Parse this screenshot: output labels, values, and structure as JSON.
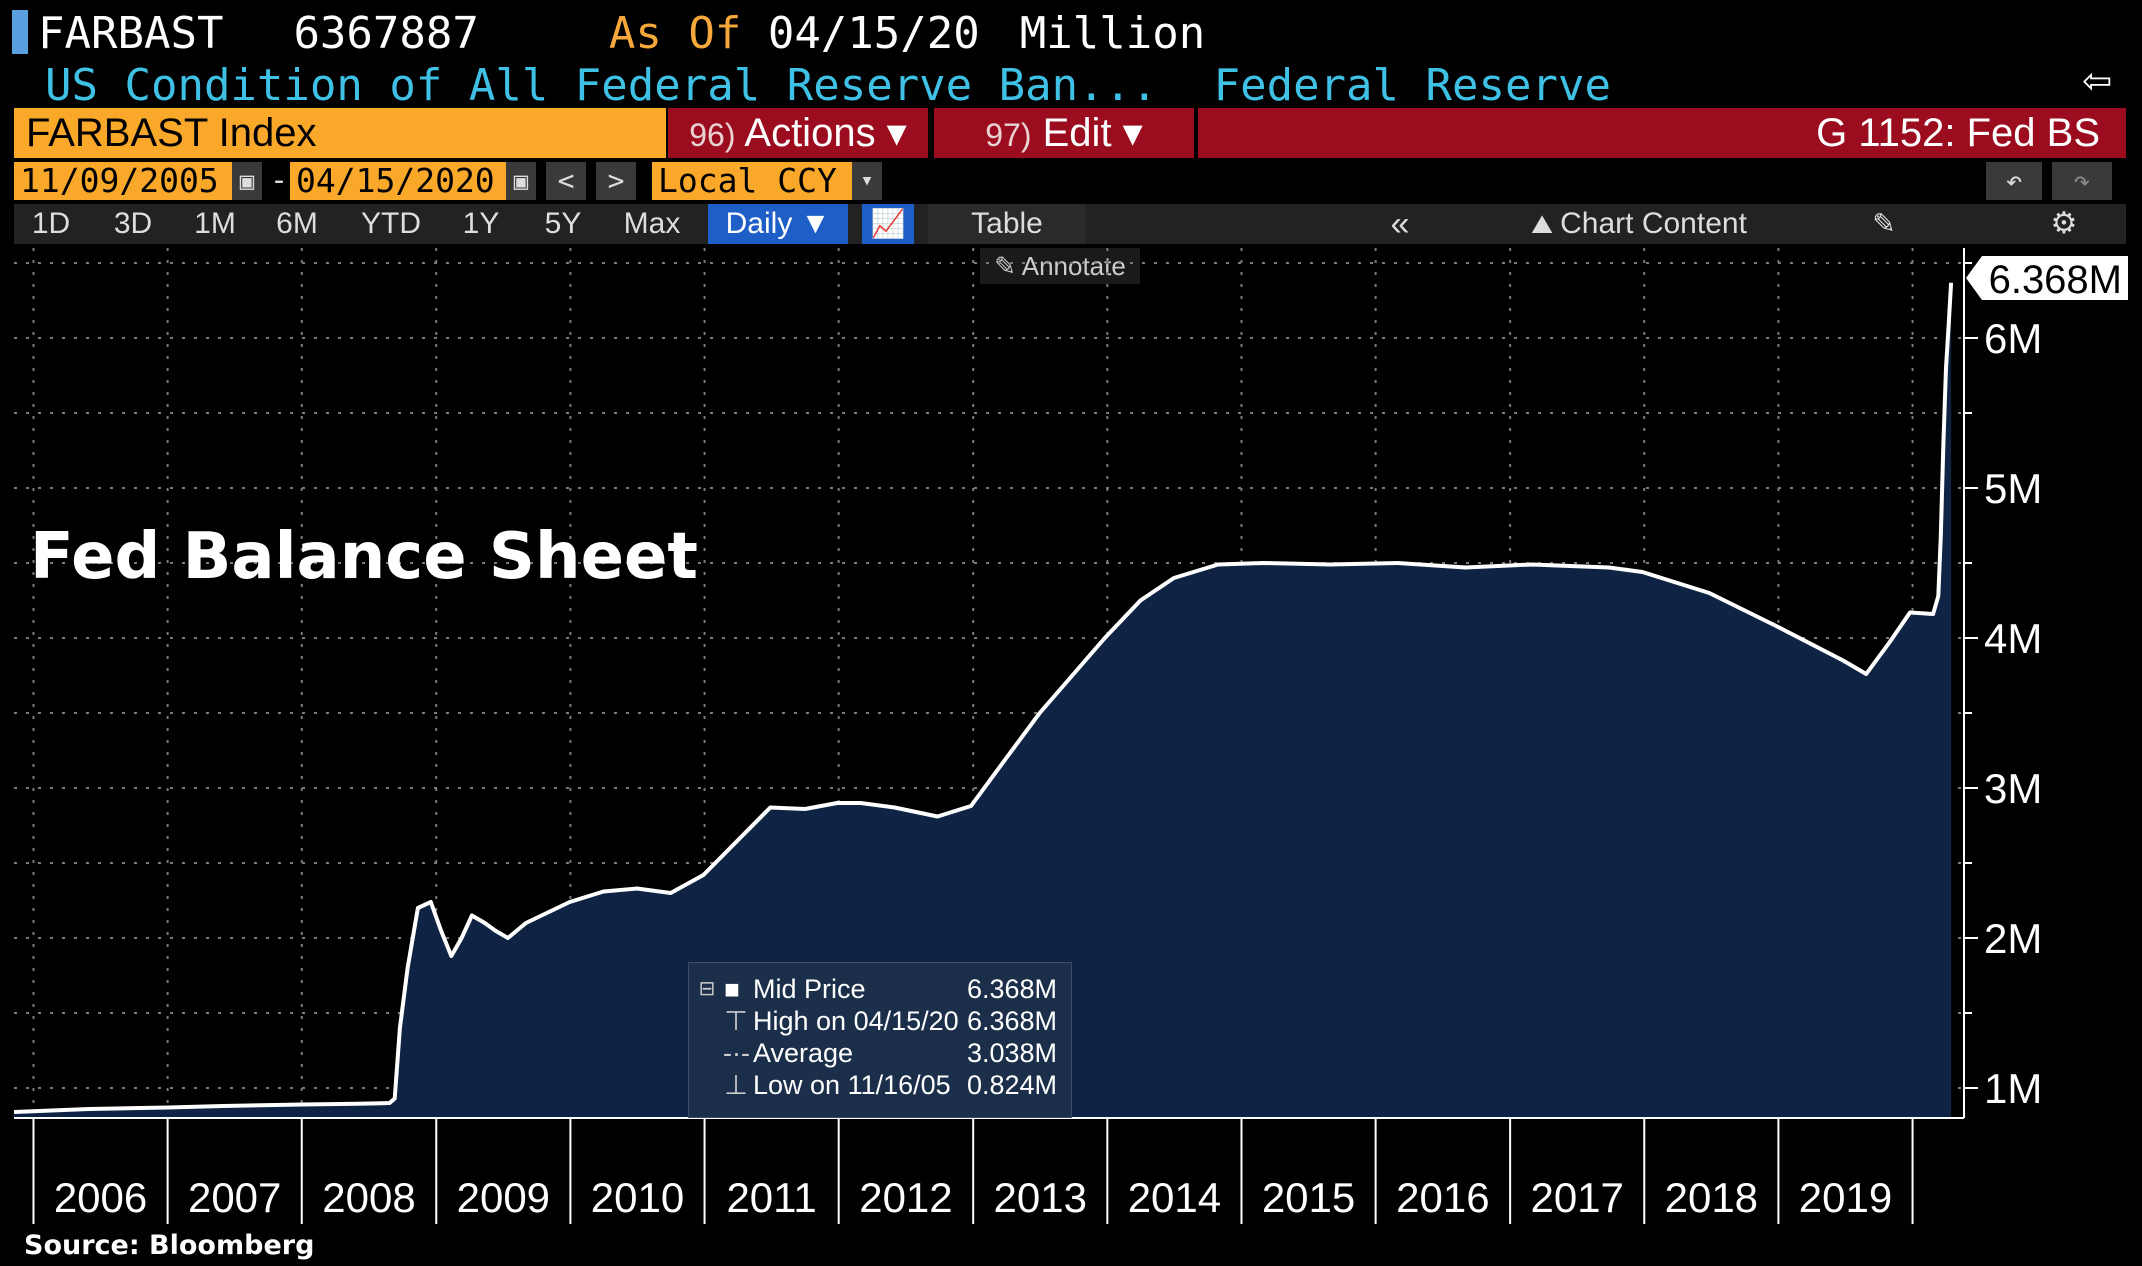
{
  "header": {
    "ticker": "FARBAST",
    "value": "6367887",
    "as_of_label": "As Of",
    "as_of_date": "04/15/20",
    "unit": "Million",
    "description": "US Condition of All Federal Reserve Ban...",
    "source_name": "Federal Reserve"
  },
  "toolbar": {
    "security": "FARBAST Index",
    "actions_num": "96)",
    "actions_label": "Actions ▾",
    "edit_num": "97)",
    "edit_label": "Edit ▾",
    "page_title": "G 1152: Fed BS"
  },
  "dates": {
    "start": "11/09/2005",
    "separator": "-",
    "end": "04/15/2020",
    "currency": "Local CCY"
  },
  "tabs": [
    {
      "label": "1D"
    },
    {
      "label": "3D"
    },
    {
      "label": "1M"
    },
    {
      "label": "6M"
    },
    {
      "label": "YTD"
    },
    {
      "label": "1Y"
    },
    {
      "label": "5Y"
    },
    {
      "label": "Max"
    },
    {
      "label": "Daily ▼"
    },
    {
      "label": "Table"
    },
    {
      "label": "Chart Content"
    }
  ],
  "annotate_label": "Annotate",
  "title_overlay": "Fed Balance Sheet",
  "source": "Source: Bloomberg",
  "legend": [
    {
      "label": "Mid Price",
      "value": "6.368M"
    },
    {
      "label": "High on 04/15/20",
      "value": "6.368M"
    },
    {
      "label": "Average",
      "value": "3.038M"
    },
    {
      "label": "Low on 11/16/05",
      "value": "0.824M"
    }
  ],
  "colors": {
    "fill": "#0f2444",
    "line": "#ffffff",
    "accent_orange": "#f9a82a",
    "accent_red": "#9b0c1e",
    "grid": "#7a7a7a"
  },
  "chart_data": {
    "type": "area",
    "title": "Fed Balance Sheet",
    "unit": "Million",
    "last_value_label": "6.368M",
    "x_ticks": [
      "2006",
      "2007",
      "2008",
      "2009",
      "2010",
      "2011",
      "2012",
      "2013",
      "2014",
      "2015",
      "2016",
      "2017",
      "2018",
      "2019"
    ],
    "y_ticks": [
      1000000,
      2000000,
      3000000,
      4000000,
      5000000,
      6000000
    ],
    "y_tick_labels": [
      "1M",
      "2M",
      "3M",
      "4M",
      "5M",
      "6M"
    ],
    "ylim": [
      800000,
      6600000
    ],
    "xlim": [
      "2005-11-09",
      "2020-05-20"
    ],
    "grid": true,
    "series": [
      {
        "values": [
          [
            "2005-11-09",
            840000
          ],
          [
            "2006-06-01",
            860000
          ],
          [
            "2007-01-01",
            870000
          ],
          [
            "2007-06-01",
            880000
          ],
          [
            "2008-01-01",
            890000
          ],
          [
            "2008-06-01",
            895000
          ],
          [
            "2008-08-27",
            900000
          ],
          [
            "2008-09-10",
            930000
          ],
          [
            "2008-09-24",
            1400000
          ],
          [
            "2008-10-15",
            1800000
          ],
          [
            "2008-11-12",
            2200000
          ],
          [
            "2008-12-17",
            2240000
          ],
          [
            "2009-01-14",
            2050000
          ],
          [
            "2009-02-11",
            1880000
          ],
          [
            "2009-03-11",
            2000000
          ],
          [
            "2009-04-08",
            2150000
          ],
          [
            "2009-05-13",
            2100000
          ],
          [
            "2009-06-10",
            2050000
          ],
          [
            "2009-07-15",
            2000000
          ],
          [
            "2009-09-02",
            2100000
          ],
          [
            "2009-12-30",
            2240000
          ],
          [
            "2010-04-01",
            2310000
          ],
          [
            "2010-07-01",
            2330000
          ],
          [
            "2010-10-01",
            2300000
          ],
          [
            "2010-12-29",
            2420000
          ],
          [
            "2011-04-01",
            2650000
          ],
          [
            "2011-06-29",
            2870000
          ],
          [
            "2011-10-01",
            2860000
          ],
          [
            "2011-12-28",
            2900000
          ],
          [
            "2012-03-01",
            2900000
          ],
          [
            "2012-06-01",
            2870000
          ],
          [
            "2012-09-26",
            2810000
          ],
          [
            "2012-12-26",
            2880000
          ],
          [
            "2013-04-01",
            3200000
          ],
          [
            "2013-07-01",
            3500000
          ],
          [
            "2013-12-25",
            4000000
          ],
          [
            "2014-04-01",
            4250000
          ],
          [
            "2014-07-01",
            4400000
          ],
          [
            "2014-10-29",
            4490000
          ],
          [
            "2015-03-01",
            4500000
          ],
          [
            "2015-09-01",
            4490000
          ],
          [
            "2016-03-01",
            4500000
          ],
          [
            "2016-09-01",
            4470000
          ],
          [
            "2017-03-01",
            4490000
          ],
          [
            "2017-09-27",
            4470000
          ],
          [
            "2017-12-27",
            4440000
          ],
          [
            "2018-06-27",
            4300000
          ],
          [
            "2018-12-26",
            4080000
          ],
          [
            "2019-06-26",
            3850000
          ],
          [
            "2019-08-28",
            3760000
          ],
          [
            "2019-10-30",
            3970000
          ],
          [
            "2019-12-25",
            4170000
          ],
          [
            "2020-02-26",
            4160000
          ],
          [
            "2020-03-11",
            4280000
          ],
          [
            "2020-03-18",
            4680000
          ],
          [
            "2020-03-25",
            5300000
          ],
          [
            "2020-04-01",
            5800000
          ],
          [
            "2020-04-08",
            6080000
          ],
          [
            "2020-04-15",
            6368000
          ]
        ]
      }
    ]
  }
}
